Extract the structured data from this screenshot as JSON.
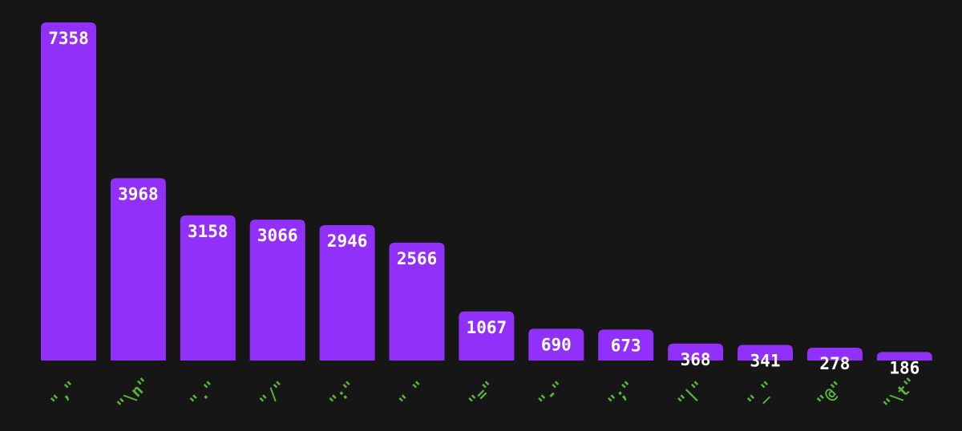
{
  "chart_data": {
    "type": "bar",
    "categories": [
      ",",
      "\\n",
      ".",
      "/",
      ":",
      " ",
      "=",
      "-",
      ";",
      "|",
      "_",
      "@",
      "\\t"
    ],
    "values": [
      7358,
      3968,
      3158,
      3066,
      2946,
      2566,
      1067,
      690,
      673,
      368,
      341,
      278,
      186
    ],
    "value_labels": [
      "7358",
      "3968",
      "3158",
      "3066",
      "2946",
      "2566",
      "1067",
      "690",
      "673",
      "368",
      "341",
      "278",
      "186"
    ],
    "category_labels": [
      "\",\"",
      "\"\\n\"",
      "\".\"",
      "\"/\"",
      "\":\"",
      "\" \"",
      "\"=\"",
      "\"-\"",
      "\";\"",
      "\"|\"",
      "\"_\"",
      "\"@\"",
      "\"\\t\""
    ],
    "title": "",
    "xlabel": "",
    "ylabel": "",
    "ylim": [
      0,
      7358
    ],
    "grid": false,
    "legend": "none",
    "colors": {
      "background": "#161616",
      "bar": "#9130f8",
      "value_text": "#ffffff",
      "category_text": "#57b33b"
    }
  }
}
